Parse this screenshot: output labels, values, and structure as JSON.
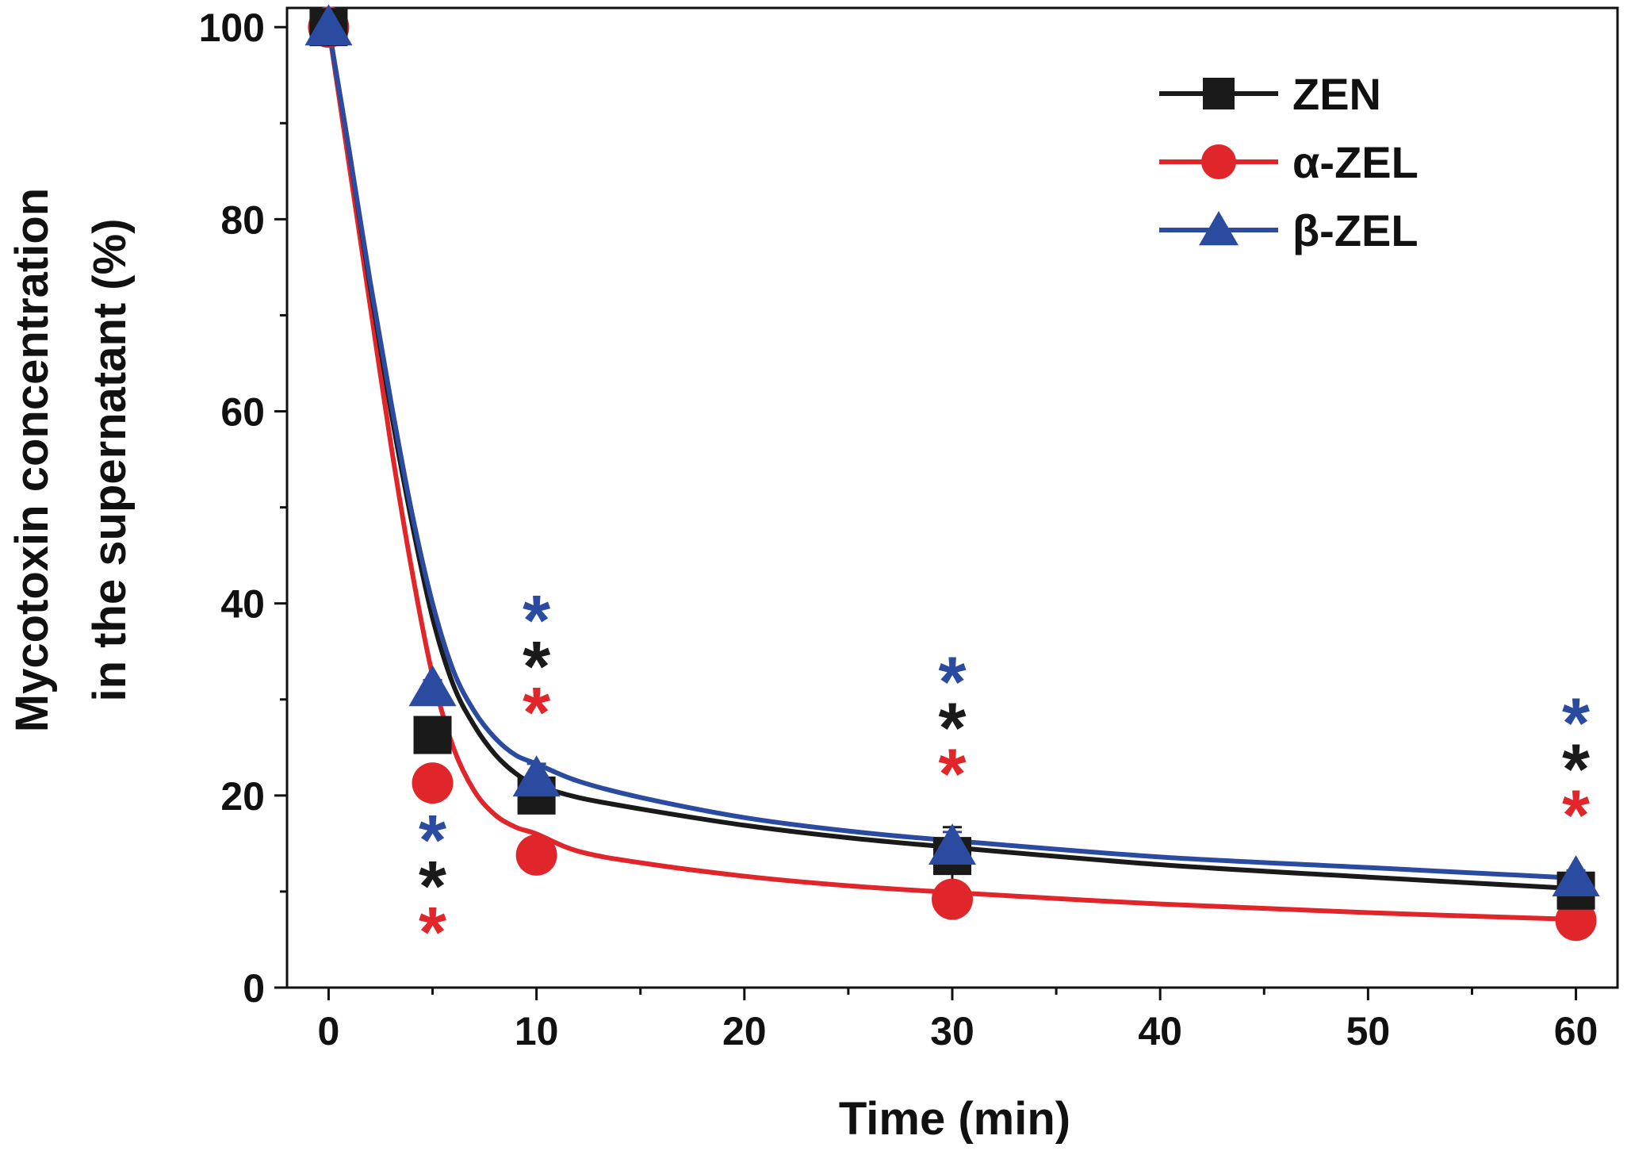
{
  "chart_data": {
    "type": "scatter",
    "title": "",
    "xlabel": "Time (min)",
    "ylabel": [
      "Mycotoxin concentration",
      "in the supernatant (%)"
    ],
    "xlim": [
      -2,
      62
    ],
    "ylim": [
      0,
      102
    ],
    "x_ticks": [
      0,
      10,
      20,
      30,
      40,
      50,
      60
    ],
    "x_tick_labels": [
      "0",
      "10",
      "20",
      "30",
      "40",
      "50",
      "60"
    ],
    "y_ticks": [
      0,
      20,
      40,
      60,
      80,
      100
    ],
    "y_tick_labels": [
      "0",
      "20",
      "40",
      "60",
      "80",
      "100"
    ],
    "grid": false,
    "legend_position": "top-right",
    "significance_marker": "*",
    "series": [
      {
        "name": "ZEN",
        "color": "#1a1a1a",
        "marker": "square",
        "x": [
          0,
          5,
          10,
          30,
          60
        ],
        "y": [
          100,
          26.3,
          20.0,
          13.7,
          10.1
        ],
        "error": [
          0,
          0.8,
          1.2,
          3.0,
          0.8
        ],
        "fit_x": [
          0,
          1,
          2,
          3,
          4,
          5,
          6,
          7,
          8,
          9,
          10,
          12,
          15,
          20,
          25,
          30,
          40,
          50,
          60
        ],
        "fit_y": [
          100,
          87,
          73,
          60,
          48.5,
          38.5,
          31.5,
          27.3,
          24.3,
          22.3,
          21.1,
          19.8,
          18.6,
          16.9,
          15.6,
          14.6,
          12.8,
          11.5,
          10.3
        ],
        "significance": [
          5,
          10,
          30,
          60
        ]
      },
      {
        "name": "α-ZEL",
        "color": "#e0262a",
        "marker": "circle",
        "x": [
          0,
          5,
          10,
          30,
          60
        ],
        "y": [
          100,
          21.3,
          13.8,
          9.2,
          7.0
        ],
        "error": [
          0,
          1.6,
          1.5,
          0.8,
          0.5
        ],
        "fit_x": [
          0,
          1,
          2,
          3,
          4,
          5,
          6,
          7,
          8,
          9,
          10,
          12,
          15,
          20,
          25,
          30,
          40,
          50,
          60
        ],
        "fit_y": [
          100,
          85.5,
          71,
          56.5,
          43.5,
          32.5,
          25,
          20.5,
          18,
          16.7,
          16.0,
          14.2,
          13.0,
          11.6,
          10.6,
          9.9,
          8.7,
          7.8,
          7.1
        ],
        "significance": [
          5,
          10,
          30,
          60
        ]
      },
      {
        "name": "β-ZEL",
        "color": "#2a4ba0",
        "marker": "triangle",
        "x": [
          0,
          5,
          10,
          30,
          60
        ],
        "y": [
          100,
          31.2,
          21.8,
          14.7,
          11.4
        ],
        "error": [
          0,
          0.8,
          1.5,
          1.5,
          0.8
        ],
        "fit_x": [
          0,
          1,
          2,
          3,
          4,
          5,
          6,
          7,
          8,
          9,
          10,
          12,
          15,
          20,
          25,
          30,
          40,
          50,
          60
        ],
        "fit_y": [
          100,
          87,
          73.5,
          61,
          49.5,
          40,
          33,
          28.8,
          26,
          24.2,
          23.3,
          21.5,
          19.8,
          17.7,
          16.3,
          15.3,
          13.6,
          12.5,
          11.4
        ],
        "significance": [
          5,
          10,
          30,
          60
        ]
      }
    ]
  }
}
